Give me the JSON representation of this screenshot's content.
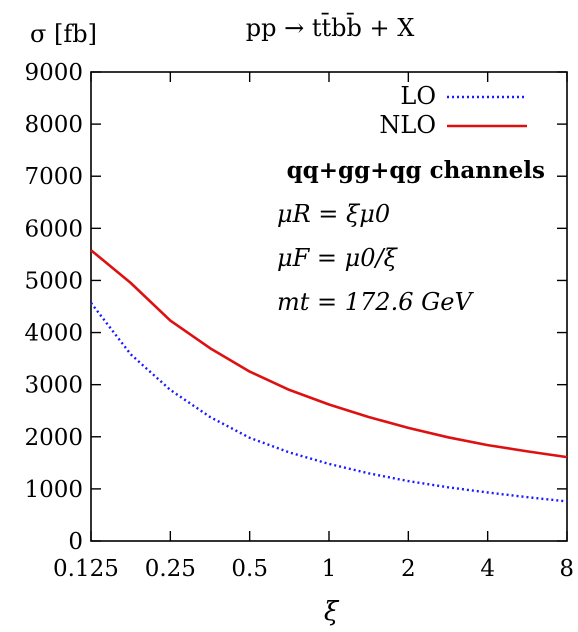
{
  "chart_data": {
    "type": "line",
    "title": "pp → tt̄bb̄ + X",
    "ylabel": "σ [fb]",
    "xlabel": "ξ",
    "xscale": "log2",
    "xlim": [
      0.125,
      8
    ],
    "ylim": [
      0,
      9000
    ],
    "xticks": [
      "0.125",
      "0.25",
      "0.5",
      "1",
      "2",
      "4",
      "8"
    ],
    "xtick_values": [
      0.125,
      0.25,
      0.5,
      1,
      2,
      4,
      8
    ],
    "yticks": [
      "0",
      "1000",
      "2000",
      "3000",
      "4000",
      "5000",
      "6000",
      "7000",
      "8000",
      "9000"
    ],
    "ytick_values": [
      0,
      1000,
      2000,
      3000,
      4000,
      5000,
      6000,
      7000,
      8000,
      9000
    ],
    "grid": false,
    "legend_position": "top-right",
    "series": [
      {
        "name": "LO",
        "color": "#1a1aff",
        "style": "dotted",
        "x": [
          0.125,
          0.177,
          0.25,
          0.354,
          0.5,
          0.707,
          1,
          1.414,
          2,
          2.83,
          4,
          5.66,
          8
        ],
        "y": [
          4570,
          3580,
          2900,
          2380,
          1980,
          1700,
          1480,
          1300,
          1150,
          1030,
          930,
          840,
          760
        ]
      },
      {
        "name": "NLO",
        "color": "#dd1111",
        "style": "solid",
        "x": [
          0.125,
          0.177,
          0.25,
          0.354,
          0.5,
          0.707,
          1,
          1.414,
          2,
          2.83,
          4,
          5.66,
          8
        ],
        "y": [
          5580,
          4950,
          4230,
          3700,
          3250,
          2900,
          2620,
          2380,
          2170,
          1990,
          1840,
          1720,
          1610
        ]
      }
    ],
    "annotations": [
      "qq+gg+qg channels",
      "μR = ξμ0",
      "μF = μ0/ξ",
      "mt = 172.6 GeV"
    ]
  }
}
